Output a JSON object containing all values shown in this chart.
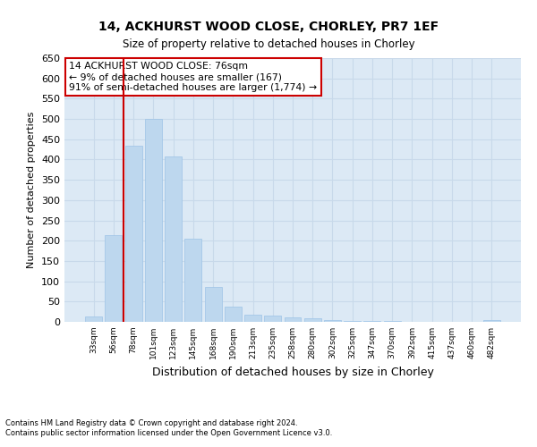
{
  "title1": "14, ACKHURST WOOD CLOSE, CHORLEY, PR7 1EF",
  "title2": "Size of property relative to detached houses in Chorley",
  "xlabel": "Distribution of detached houses by size in Chorley",
  "ylabel": "Number of detached properties",
  "categories": [
    "33sqm",
    "56sqm",
    "78sqm",
    "101sqm",
    "123sqm",
    "145sqm",
    "168sqm",
    "190sqm",
    "213sqm",
    "235sqm",
    "258sqm",
    "280sqm",
    "302sqm",
    "325sqm",
    "347sqm",
    "370sqm",
    "392sqm",
    "415sqm",
    "437sqm",
    "460sqm",
    "482sqm"
  ],
  "values": [
    14,
    213,
    435,
    500,
    408,
    205,
    85,
    38,
    17,
    15,
    11,
    9,
    5,
    3,
    2,
    2,
    1,
    1,
    0,
    0,
    4
  ],
  "bar_color": "#bdd7ee",
  "bar_edgecolor": "#9dc3e6",
  "annotation_text": "14 ACKHURST WOOD CLOSE: 76sqm\n← 9% of detached houses are smaller (167)\n91% of semi-detached houses are larger (1,774) →",
  "annotation_box_color": "#ffffff",
  "annotation_box_edgecolor": "#cc0000",
  "property_line_color": "#cc0000",
  "grid_color": "#c8d9ea",
  "background_color": "#dce9f5",
  "ylim": [
    0,
    650
  ],
  "yticks": [
    0,
    50,
    100,
    150,
    200,
    250,
    300,
    350,
    400,
    450,
    500,
    550,
    600,
    650
  ],
  "footnote1": "Contains HM Land Registry data © Crown copyright and database right 2024.",
  "footnote2": "Contains public sector information licensed under the Open Government Licence v3.0."
}
